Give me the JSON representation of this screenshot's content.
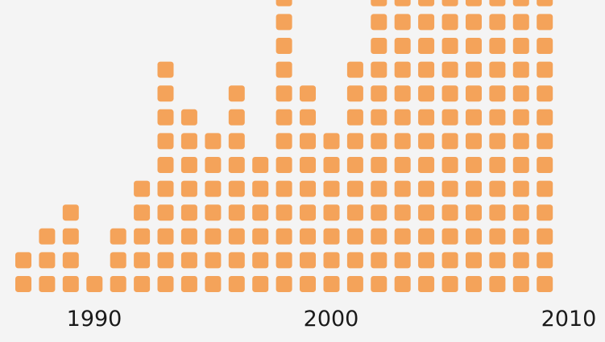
{
  "chart_data": {
    "type": "bar",
    "style": "unit-square pictogram (waffle columns)",
    "x": [
      1988,
      1989,
      1990,
      1991,
      1992,
      1993,
      1994,
      1995,
      1996,
      1997,
      1998,
      1999,
      2000,
      2001,
      2002,
      2003,
      2004,
      2005,
      2006,
      2007,
      2008,
      2009,
      2010
    ],
    "values": [
      2,
      3,
      4,
      1,
      3,
      5,
      10,
      8,
      7,
      9,
      6,
      13,
      9,
      7,
      10,
      13,
      13,
      13,
      13,
      13,
      13,
      13,
      13
    ],
    "x_ticks": [
      "1990",
      "2000",
      "2010"
    ],
    "ylim": [
      0,
      13
    ],
    "grid": false,
    "legend": "none",
    "colors": {
      "unit": "#f4a35a",
      "background": "#f4f4f4",
      "text": "#1a1a1a"
    }
  }
}
